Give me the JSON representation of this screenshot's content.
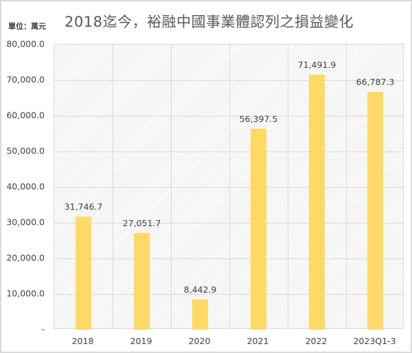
{
  "header": {
    "unit": "單位：萬元",
    "title": "2018迄今，裕融中國事業體認列之損益變化"
  },
  "chart_data": {
    "type": "bar",
    "title": "2018迄今，裕融中國事業體認列之損益變化",
    "unit_label": "單位：萬元",
    "xlabel": "",
    "ylabel": "",
    "categories": [
      "2018",
      "2019",
      "2020",
      "2021",
      "2022",
      "2023Q1-3"
    ],
    "values": [
      31746.7,
      27051.7,
      8442.9,
      56397.5,
      71491.9,
      66787.3
    ],
    "value_labels": [
      "31,746.7",
      "27,051.7",
      "8,442.9",
      "56,397.5",
      "71,491.9",
      "66,787.3"
    ],
    "ylim": [
      0,
      80000
    ],
    "yticks": [
      0,
      10000,
      20000,
      30000,
      40000,
      50000,
      60000,
      70000,
      80000
    ],
    "ytick_labels": [
      "-",
      "10,000.0",
      "20,000.0",
      "30,000.0",
      "40,000.0",
      "50,000.0",
      "60,000.0",
      "70,000.0",
      "80,000.0"
    ],
    "grid": true,
    "legend": "none",
    "colors": {
      "bar": "#ffd966",
      "grid": "#d9d9d9",
      "text": "#404040",
      "title": "#595959"
    }
  }
}
